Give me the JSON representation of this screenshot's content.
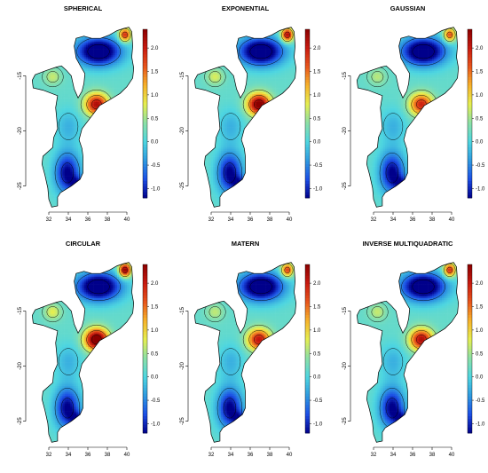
{
  "chart_data": {
    "type": "heatmap",
    "colorbar": {
      "ticks": [
        "2.0",
        "1.5",
        "1.0",
        "0.5",
        "0.0",
        "-0.5",
        "-1.0"
      ],
      "range": [
        -1.2,
        2.4
      ],
      "colors": [
        "#00008b",
        "#1c4fe6",
        "#2f9be0",
        "#4ed6e0",
        "#8ce0a6",
        "#e6ef50",
        "#f7b32b",
        "#e8551c",
        "#c81a10",
        "#8b0000"
      ]
    },
    "x_ticks": [
      "32",
      "34",
      "36",
      "38",
      "40"
    ],
    "y_ticks": [
      "-15",
      "-20",
      "-25"
    ],
    "panels": [
      {
        "title": "SPHERICAL",
        "intensity": 0.85
      },
      {
        "title": "EXPONENTIAL",
        "intensity": 1.0
      },
      {
        "title": "GAUSSIAN",
        "intensity": 0.75
      },
      {
        "title": "CIRCULAR",
        "intensity": 1.1
      },
      {
        "title": "MATERN",
        "intensity": 0.8
      },
      {
        "title": "INVERSE MULTIQUADRATIC",
        "intensity": 0.85
      }
    ]
  }
}
